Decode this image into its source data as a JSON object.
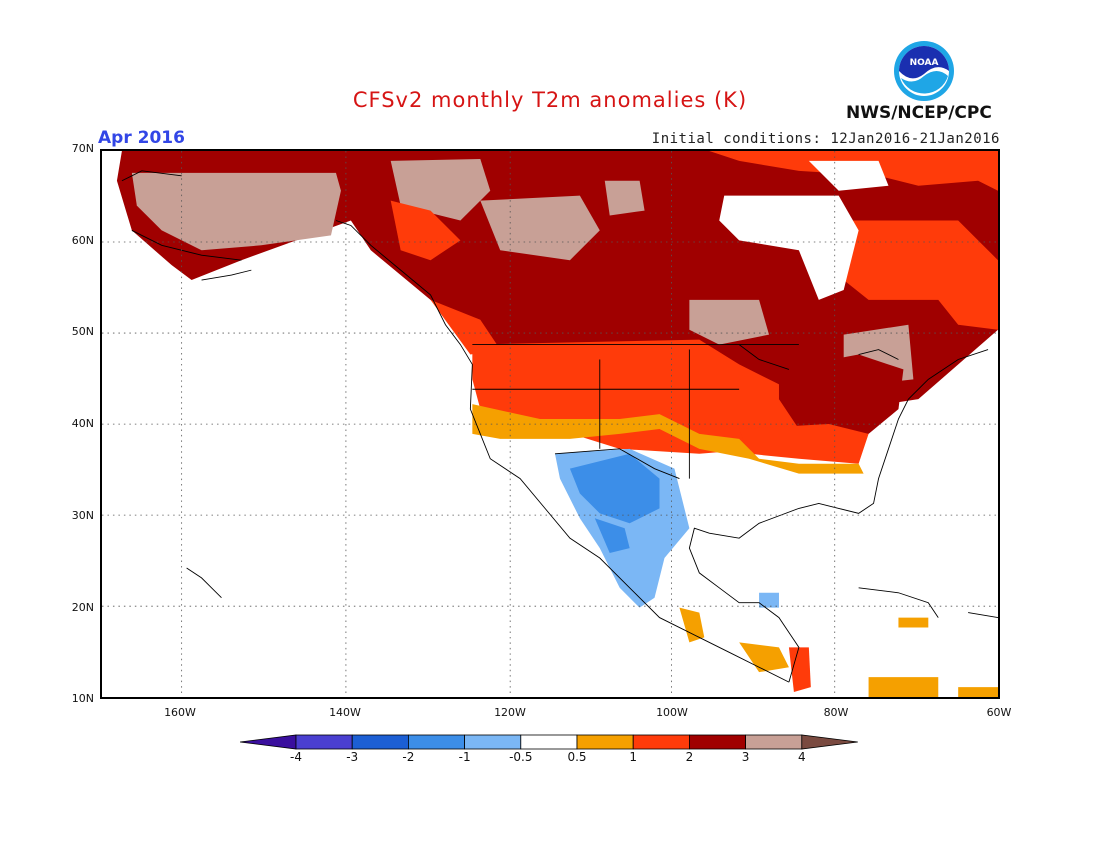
{
  "header": {
    "title": "CFSv2 monthly T2m anomalies (K)",
    "month": "Apr 2016",
    "initial_conditions": "Initial conditions: 12Jan2016-21Jan2016",
    "agency": "NWS/NCEP/CPC",
    "logo_text": "NOAA"
  },
  "colors": {
    "title": "#d61414",
    "month": "#3246e6"
  },
  "map": {
    "lon_range": [
      -170,
      -60
    ],
    "lat_range": [
      10,
      70
    ],
    "lat_ticks": [
      "70N",
      "60N",
      "50N",
      "40N",
      "30N",
      "20N",
      "10N"
    ],
    "lon_ticks": [
      "160W",
      "140W",
      "120W",
      "100W",
      "80W",
      "60W"
    ],
    "grid": "dotted"
  },
  "colorbar": {
    "labels": [
      "-4",
      "-3",
      "-2",
      "-1",
      "-0.5",
      "0.5",
      "1",
      "2",
      "3",
      "4"
    ],
    "colors": [
      "#3a0f9e",
      "#4a3fd0",
      "#1c5fd4",
      "#3c8ee8",
      "#7bb7f5",
      "#ffffff",
      "#f5a000",
      "#ff3b0a",
      "#a00000",
      "#c8a096",
      "#7a4a40"
    ]
  },
  "chart_data": {
    "type": "heatmap",
    "title": "CFSv2 monthly T2m anomalies (K)",
    "units": "K",
    "period": "Apr 2016",
    "regions": [
      {
        "region": "Alaska interior / northwest Canada",
        "anomaly_bin": "3 to 4"
      },
      {
        "region": "Canadian Arctic / Yukon",
        "anomaly_bin": "3 to 4"
      },
      {
        "region": "Central & eastern Canada",
        "anomaly_bin": "2 to 3"
      },
      {
        "region": "Hudson Bay",
        "anomaly_bin": "no data"
      },
      {
        "region": "US Northern Plains / Northwest",
        "anomaly_bin": "1 to 2"
      },
      {
        "region": "US Northeast / Great Lakes",
        "anomaly_bin": "2 to 3"
      },
      {
        "region": "US Mid-Atlantic / Ohio Valley",
        "anomaly_bin": "1 to 2"
      },
      {
        "region": "US central latitude belt ~40N",
        "anomaly_bin": "0.5 to 1"
      },
      {
        "region": "US Southwest / Southern Plains",
        "anomaly_bin": "-0.5 to 0.5"
      },
      {
        "region": "New Mexico / West Texas / northern Mexico",
        "anomaly_bin": "-1 to -0.5"
      },
      {
        "region": "US Southeast",
        "anomaly_bin": "-0.5 to 0.5"
      },
      {
        "region": "Central America",
        "anomaly_bin": "0.5 to 2"
      }
    ]
  }
}
